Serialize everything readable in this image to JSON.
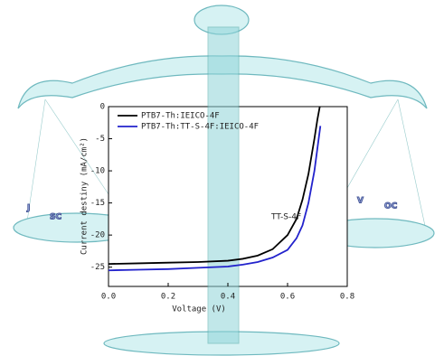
{
  "chart_data": {
    "type": "line",
    "xlabel": "Voltage (V)",
    "ylabel": "Current destiny (mA/cm²)",
    "xlim": [
      0,
      0.8
    ],
    "ylim": [
      -28,
      0
    ],
    "xticks": [
      {
        "value": 0,
        "label": "0.0"
      },
      0.2,
      0.4,
      0.6,
      0.8
    ],
    "yticks": [
      -25,
      -20,
      -15,
      -10,
      -5,
      0
    ],
    "x": [
      0,
      0.1,
      0.2,
      0.3,
      0.4,
      0.45,
      0.5,
      0.55,
      0.6,
      0.63,
      0.65,
      0.67,
      0.69,
      0.7,
      0.71
    ],
    "series": [
      {
        "name": "PTB7-Th:IEICO-4F",
        "color": "#000000",
        "values": [
          -24.5,
          -24.4,
          -24.3,
          -24.2,
          -24.0,
          -23.7,
          -23.2,
          -22.2,
          -20,
          -17.5,
          -14.5,
          -10.5,
          -5,
          -2,
          0.5
        ]
      },
      {
        "name": "PTB7-Th:TT-S-4F:IEICO-4F",
        "color": "#2222cc",
        "values": [
          -25.5,
          -25.4,
          -25.3,
          -25.1,
          -24.9,
          -24.6,
          -24.2,
          -23.5,
          -22.3,
          -20.5,
          -18.5,
          -15,
          -10,
          -6.5,
          -3
        ]
      }
    ],
    "legend": "upper left",
    "molecule_label": "TT-S-4F",
    "left_pan": {
      "main": "J",
      "sub": "SC"
    },
    "right_pan": {
      "main": "V",
      "sub": "OC"
    }
  }
}
